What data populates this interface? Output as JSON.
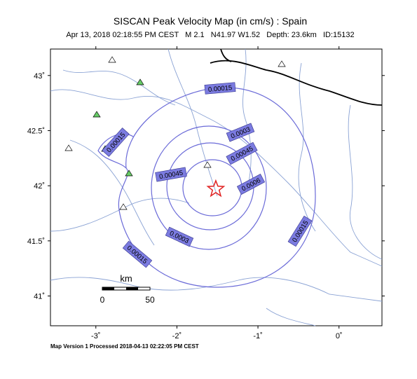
{
  "title": "SISCAN Peak Velocity Map (in cm/s) : Spain",
  "subtitle": "Apr 13, 2018 02:18:55 PM CEST   M 2.1   N41.97 W1.52   Depth: 23.6km   ID:15132",
  "footer": "Map Version 1 Processed 2018-04-13 02:22:05 PM CEST",
  "map": {
    "lonlim": [
      -3.56,
      0.53
    ],
    "latlim": [
      40.73,
      43.24
    ],
    "lon_ticks": [
      {
        "value": -3,
        "label": "-3˚"
      },
      {
        "value": -2,
        "label": "-2˚"
      },
      {
        "value": -1,
        "label": "-1˚"
      },
      {
        "value": 0,
        "label": "0˚"
      }
    ],
    "lat_ticks": [
      {
        "value": 43,
        "label": "43˚"
      },
      {
        "value": 42.5,
        "label": "42.5˚"
      },
      {
        "value": 42,
        "label": "42˚"
      },
      {
        "value": 41.5,
        "label": "41.5˚"
      },
      {
        "value": 41,
        "label": "41˚"
      }
    ],
    "epicenter": {
      "lat": 41.97,
      "lon": -1.52
    },
    "contour_labels": [
      "0.00015",
      "0.00015",
      "0.0003",
      "0.00045",
      "0.00045",
      "0.0006",
      "0.0003",
      "0.00015",
      "0.00015"
    ],
    "scale": {
      "unit": "km",
      "ticks": [
        0,
        50
      ]
    }
  }
}
